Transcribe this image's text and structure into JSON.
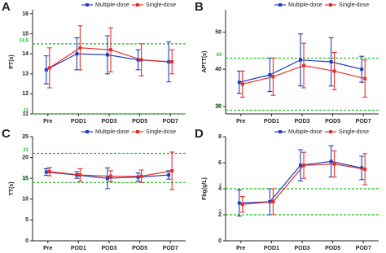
{
  "chart_data": [
    {
      "type": "line",
      "label": "A",
      "ylabel": "PT(s)",
      "categories": [
        "Pre",
        "POD1",
        "POD3",
        "POD5",
        "POD7"
      ],
      "ylim": [
        11,
        16.2
      ],
      "yticks": [
        11,
        12,
        13,
        14,
        15,
        16
      ],
      "reference_lines": [
        14.5,
        11
      ],
      "reference_color": "#22bb22",
      "series": [
        {
          "name": "Multiple-dose",
          "color": "#1f3fbf",
          "values": [
            13.2,
            14.0,
            13.95,
            13.7,
            13.6
          ],
          "errors": [
            0.7,
            0.8,
            0.95,
            0.5,
            1.0
          ]
        },
        {
          "name": "Single-dose",
          "color": "#e8302a",
          "values": [
            13.3,
            14.3,
            14.2,
            13.7,
            13.6
          ],
          "errors": [
            1.0,
            1.1,
            1.1,
            0.8,
            0.6
          ]
        }
      ]
    },
    {
      "type": "line",
      "label": "B",
      "ylabel": "APTT(s)",
      "categories": [
        "Pre",
        "POD1",
        "POD3",
        "POD5",
        "POD7"
      ],
      "ylim": [
        28,
        56
      ],
      "yticks": [
        30,
        40,
        50
      ],
      "reference_lines": [
        43,
        29
      ],
      "reference_color": "#22bb22",
      "series": [
        {
          "name": "Multiple-dose",
          "color": "#1f3fbf",
          "values": [
            36.5,
            38.5,
            42.5,
            42,
            40
          ],
          "errors": [
            3,
            4.5,
            7,
            6.5,
            3.5
          ]
        },
        {
          "name": "Single-dose",
          "color": "#e8302a",
          "values": [
            36,
            38,
            41,
            39.5,
            37.5
          ],
          "errors": [
            3.5,
            5,
            6,
            5,
            5
          ]
        }
      ]
    },
    {
      "type": "line",
      "label": "C",
      "ylabel": "TT(s)",
      "categories": [
        "Pre",
        "POD1",
        "POD3",
        "POD5",
        "POD7"
      ],
      "ylim": [
        0,
        25
      ],
      "yticks": [
        0,
        5,
        10,
        15,
        20,
        25
      ],
      "reference_lines": [
        21,
        14
      ],
      "reference_color": "#22bb22",
      "series": [
        {
          "name": "Multiple-dose",
          "color": "#1f3fbf",
          "values": [
            16.5,
            15.8,
            15,
            15.3,
            15.8
          ],
          "errors": [
            0.8,
            0.8,
            2.5,
            1,
            1
          ]
        },
        {
          "name": "Single-dose",
          "color": "#e8302a",
          "values": [
            16.6,
            15.8,
            15.5,
            15.5,
            16.8
          ],
          "errors": [
            1,
            1.5,
            1.3,
            1.5,
            4.5
          ]
        }
      ]
    },
    {
      "type": "line",
      "label": "D",
      "ylabel": "Fbg(g/L)",
      "categories": [
        "Pre",
        "POD1",
        "POD3",
        "POD5",
        "POD7"
      ],
      "ylim": [
        0,
        8
      ],
      "yticks": [
        0,
        2,
        4,
        6,
        8
      ],
      "reference_lines": [
        4,
        2
      ],
      "reference_color": "#22bb22",
      "series": [
        {
          "name": "Multiple-dose",
          "color": "#1f3fbf",
          "values": [
            2.9,
            3.0,
            5.8,
            6.1,
            5.6
          ],
          "errors": [
            1,
            1,
            1.2,
            1.2,
            0.9
          ]
        },
        {
          "name": "Single-dose",
          "color": "#e8302a",
          "values": [
            2.8,
            3.0,
            5.8,
            5.9,
            5.5
          ],
          "errors": [
            0.6,
            1,
            1,
            1,
            1.2
          ]
        }
      ]
    }
  ]
}
